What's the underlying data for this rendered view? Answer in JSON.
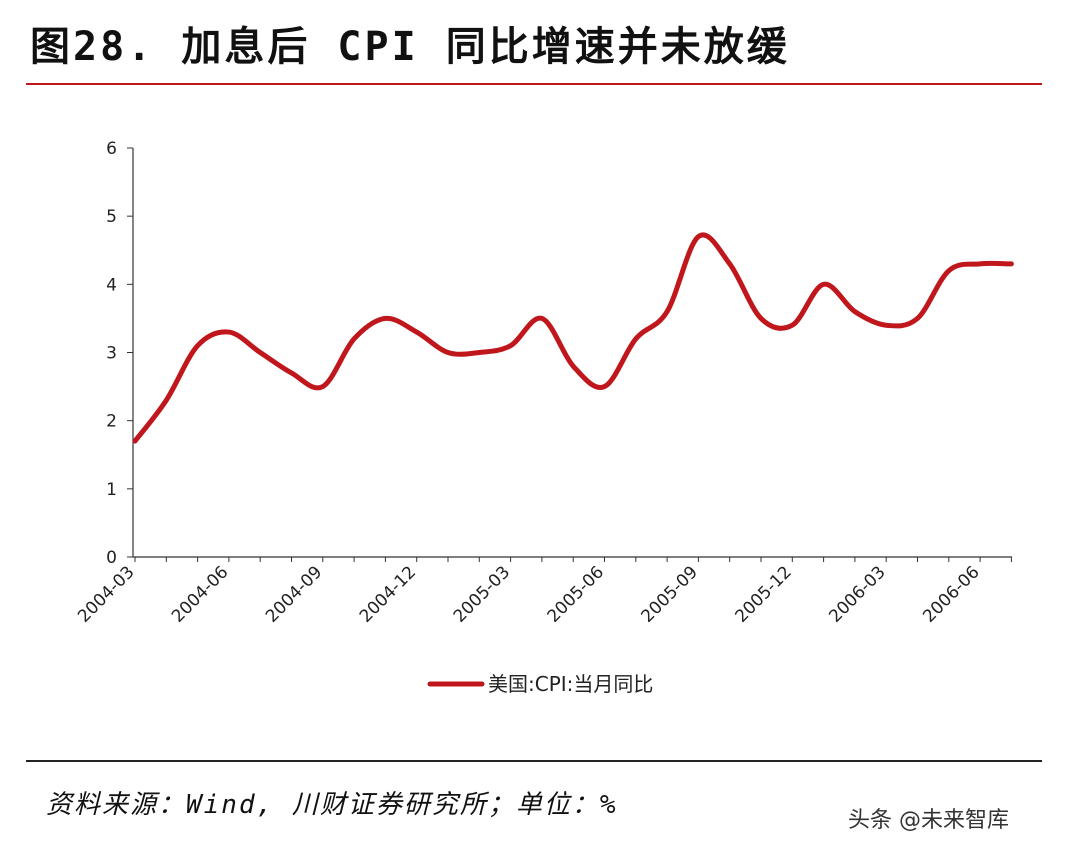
{
  "header": {
    "title": "图28. 加息后 CPI 同比增速并未放缓"
  },
  "footer": {
    "source": "资料来源：Wind, 川财证券研究所；单位：%",
    "watermark": "头条 @未来智库"
  },
  "colors": {
    "series": "#c0171d",
    "rule": "#c0171d",
    "axis": "#333333"
  },
  "chart_data": {
    "type": "line",
    "title": "",
    "xlabel": "",
    "ylabel": "",
    "ylim": [
      0,
      6
    ],
    "yticks": [
      0,
      1,
      2,
      3,
      4,
      5,
      6
    ],
    "x": [
      "2004-03",
      "2004-04",
      "2004-05",
      "2004-06",
      "2004-07",
      "2004-08",
      "2004-09",
      "2004-10",
      "2004-11",
      "2004-12",
      "2005-01",
      "2005-02",
      "2005-03",
      "2005-04",
      "2005-05",
      "2005-06",
      "2005-07",
      "2005-08",
      "2005-09",
      "2005-10",
      "2005-11",
      "2005-12",
      "2006-01",
      "2006-02",
      "2006-03",
      "2006-04",
      "2006-05",
      "2006-06",
      "2006-07"
    ],
    "xticks": [
      "2004-03",
      "2004-06",
      "2004-09",
      "2004-12",
      "2005-03",
      "2005-06",
      "2005-09",
      "2005-12",
      "2006-03",
      "2006-06"
    ],
    "grid": false,
    "legend": "bottom-center",
    "series": [
      {
        "name": "美国:CPI:当月同比",
        "values": [
          1.7,
          2.3,
          3.1,
          3.3,
          3.0,
          2.7,
          2.5,
          3.2,
          3.5,
          3.3,
          3.0,
          3.0,
          3.1,
          3.5,
          2.8,
          2.5,
          3.2,
          3.6,
          4.7,
          4.3,
          3.5,
          3.4,
          4.0,
          3.6,
          3.4,
          3.5,
          4.2,
          4.3,
          4.3
        ]
      }
    ]
  }
}
